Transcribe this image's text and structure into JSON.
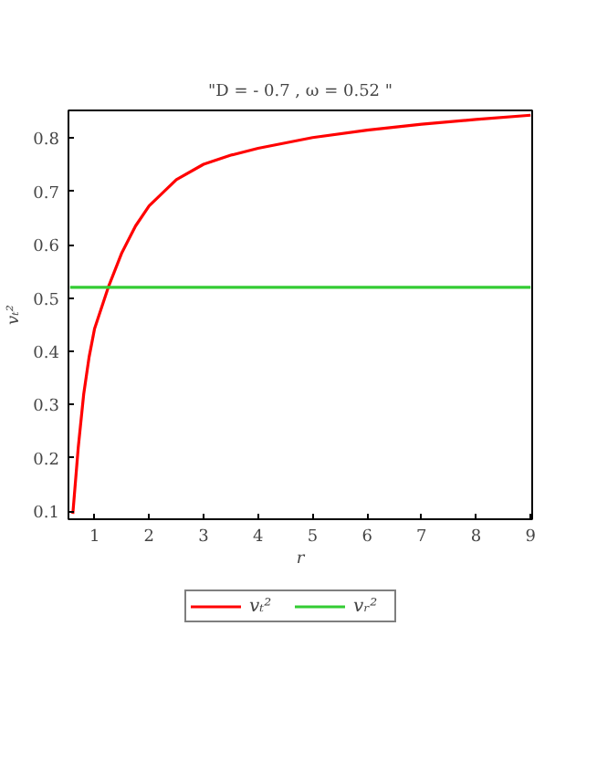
{
  "chart_data": {
    "type": "line",
    "title": "\"D = - 0.7 , ω = 0.52 \"",
    "xlabel": "r",
    "ylabel": "vₜ²",
    "series": [
      {
        "name": "vₜ²",
        "color": "#ff0000",
        "x": [
          0.6,
          0.7,
          0.8,
          0.9,
          1.0,
          1.25,
          1.5,
          1.75,
          2,
          2.5,
          3,
          3.5,
          4,
          5,
          6,
          7,
          8,
          9
        ],
        "values": [
          0.095,
          0.22,
          0.32,
          0.39,
          0.443,
          0.52,
          0.585,
          0.635,
          0.673,
          0.722,
          0.751,
          0.768,
          0.781,
          0.801,
          0.815,
          0.826,
          0.835,
          0.843
        ]
      },
      {
        "name": "vᵣ²",
        "color": "#33cc33",
        "x": [
          0.55,
          9
        ],
        "values": [
          0.52,
          0.52
        ]
      }
    ],
    "xlim": [
      0.52,
      9.03
    ],
    "ylim": [
      0.085,
      0.852
    ],
    "xticks": [
      1,
      2,
      3,
      4,
      5,
      6,
      7,
      8,
      9
    ],
    "yticks": [
      0.1,
      0.2,
      0.3,
      0.4,
      0.5,
      0.6,
      0.7,
      0.8
    ],
    "grid": false,
    "legend": "bottom",
    "marker": "none",
    "line_style": "solid"
  }
}
